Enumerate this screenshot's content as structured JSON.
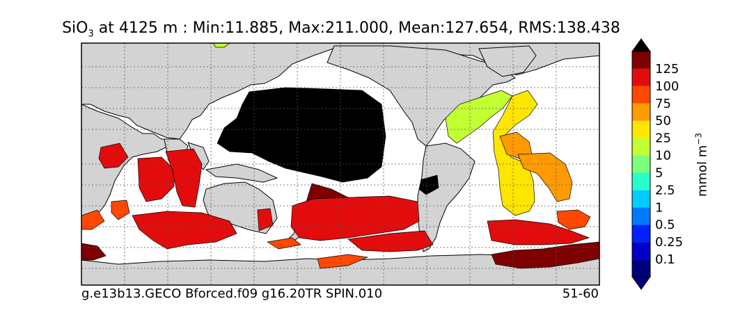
{
  "title": {
    "species": "SiO",
    "subscript": "3",
    "rest": " at 4125 m : Min:11.885, Max:211.000, Mean:127.654, RMS:138.438"
  },
  "footer": {
    "run_name": "g.e13b13.GECO Bforced.f09 g16.20TR SPIN.010",
    "years": "51-60"
  },
  "colorbar": {
    "units_base": "mmol m",
    "units_exp": "−3",
    "extend": "both",
    "levels": [
      {
        "label": "",
        "color": "#00007f"
      },
      {
        "label": "0.1",
        "color": "#0000c8"
      },
      {
        "label": "0.25",
        "color": "#0022ff"
      },
      {
        "label": "0.5",
        "color": "#0078ff"
      },
      {
        "label": "1",
        "color": "#00ccff"
      },
      {
        "label": "2.5",
        "color": "#26ffc8"
      },
      {
        "label": "5",
        "color": "#7cff7a"
      },
      {
        "label": "10",
        "color": "#c2ff33"
      },
      {
        "label": "25",
        "color": "#ffe600"
      },
      {
        "label": "50",
        "color": "#ff9a00"
      },
      {
        "label": "75",
        "color": "#ff4800"
      },
      {
        "label": "100",
        "color": "#e30c0c"
      },
      {
        "label": "125",
        "color": "#7f0000"
      }
    ],
    "under_color": "#00007f",
    "over_color": "#000000"
  },
  "chart_data": {
    "type": "heatmap",
    "variable": "SiO3",
    "depth_m": 4125,
    "stats": {
      "min": 11.885,
      "max": 211.0,
      "mean": 127.654,
      "rms": 138.438
    },
    "units": "mmol m-3",
    "grid": true,
    "legend": "colorbar-right",
    "land_color": "#d3d3d3",
    "no_data_color": "#ffffff"
  }
}
